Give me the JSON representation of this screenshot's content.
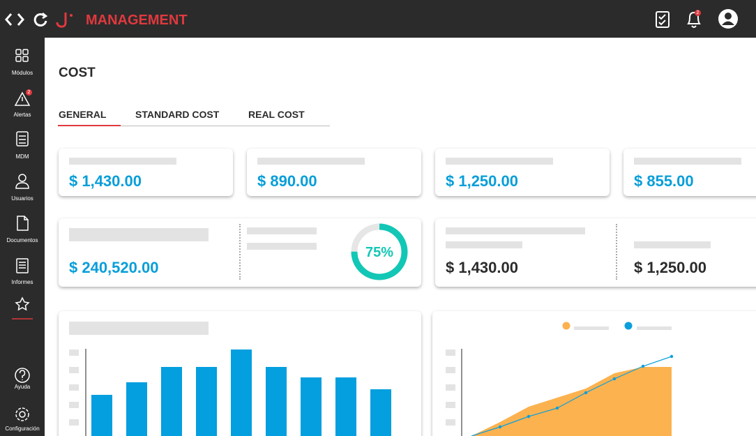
{
  "header": {
    "brand": "MANAGEMENT",
    "notification_badge": 2
  },
  "sidebar": {
    "items": [
      "Módulos",
      "Alertas",
      "MDM",
      "Usuarios",
      "Documentos",
      "Informes"
    ],
    "bottom_items": [
      "Ayuda",
      "Configuración"
    ],
    "alert_badge": 2
  },
  "page": {
    "title": "COST",
    "tabs": [
      "GENERAL",
      "STANDARD COST",
      "REAL COST"
    ]
  },
  "summary_cards": [
    "$ 1,430.00",
    "$ 890.00",
    "$ 1,250.00",
    "$ 855.00"
  ],
  "total_card": {
    "value": "$ 240,520.00"
  },
  "progress": {
    "value": 75,
    "value_label": "75%",
    "color": "#12c7b5"
  },
  "comparison_card": {
    "values": [
      "$ 1,430.00",
      "$ 1,250.00"
    ]
  },
  "bar_chart": {
    "type": "bar",
    "values": [
      59,
      77,
      99,
      99,
      124,
      99,
      84,
      84,
      67
    ],
    "color": "#049fdf"
  },
  "area_chart": {
    "type": "area",
    "x": [
      0,
      1,
      2,
      3,
      4,
      5,
      6,
      7
    ],
    "series": [
      {
        "color": "#fbb24f",
        "values": [
          0,
          20,
          42,
          55,
          68,
          90,
          99,
          99
        ]
      },
      {
        "color": "#0a9fdc",
        "values": [
          0,
          13,
          28,
          40,
          62,
          82,
          100,
          114
        ]
      }
    ]
  }
}
